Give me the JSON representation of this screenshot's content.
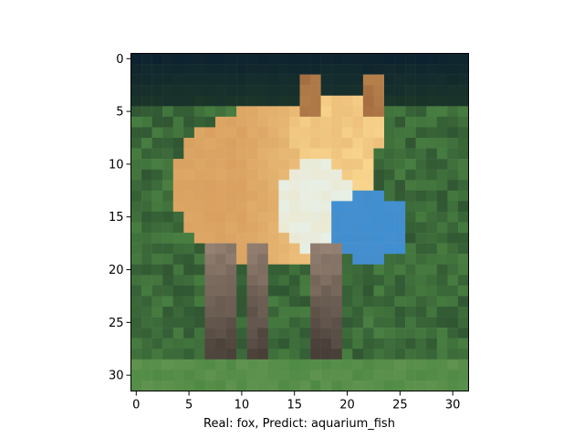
{
  "figure": {
    "xlabel": "Real: fox, Predict: aquarium_fish",
    "image_size": [
      32,
      32
    ],
    "xticks": [
      "0",
      "5",
      "10",
      "15",
      "20",
      "25",
      "30"
    ],
    "yticks": [
      "0",
      "5",
      "10",
      "15",
      "20",
      "25",
      "30"
    ],
    "image_description_colors": {
      "background_top": "#0d2230",
      "fox_body": "#d9a060",
      "fox_highlight": "#f7d28a",
      "chest_white": "#e7efe6",
      "blue_patch": "#3f8fd2",
      "grass_green": "#4f8a45",
      "dark_green": "#1f3a28"
    }
  }
}
